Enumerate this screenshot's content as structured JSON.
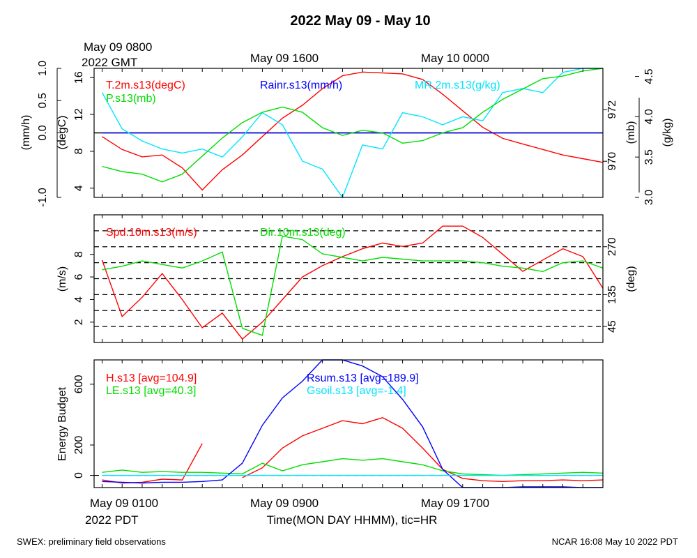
{
  "title": "2022 May 09 - May 10",
  "top_times": {
    "gmt_date": "May 09 0800",
    "gmt_label": "2022 GMT",
    "t2": "May 09 1600",
    "t3": "May 10 0000"
  },
  "bottom_times": {
    "t1": "May 09 0100",
    "pdt_label": "2022 PDT",
    "t2": "May 09 0900",
    "t3": "May 09 1700",
    "xlabel": "Time(MON DAY HHMM), tic=HR"
  },
  "footer": {
    "left": "SWEX: preliminary field observations",
    "right": "NCAR 16:08 May 10 2022 PDT"
  },
  "colors": {
    "red": "#ff0000",
    "green": "#00dd00",
    "blue": "#0000ff",
    "cyan": "#00e5ff",
    "black": "#000000"
  },
  "chart_data": [
    {
      "type": "line",
      "panel": "thermo",
      "x_hours_pdt": [
        1,
        2,
        3,
        4,
        5,
        6,
        7,
        8,
        9,
        10,
        11,
        12,
        13,
        14,
        15,
        16,
        17,
        18,
        19,
        20,
        21,
        22,
        23,
        24,
        25,
        26
      ],
      "axes": [
        {
          "label": "(mm/h)",
          "ticks": [
            "-1.0",
            "0.0",
            "0.5",
            "1.0"
          ],
          "ylim": [
            -1.0,
            1.0
          ]
        },
        {
          "label": "(degC)",
          "ticks": [
            "4",
            "8",
            "12",
            "16"
          ],
          "ylim": [
            3,
            17
          ]
        },
        {
          "label": "(mb)",
          "ticks": [
            "970",
            "972"
          ],
          "ylim": [
            968.6,
            973.6
          ]
        },
        {
          "label": "(g/kg)",
          "ticks": [
            "3.0",
            "3.5",
            "4.0",
            "4.5"
          ],
          "ylim": [
            3.0,
            4.6
          ]
        }
      ],
      "series": [
        {
          "name": "T.2m.s13(degC)",
          "color": "#ff0000",
          "axis": 1,
          "values": [
            9.6,
            8.2,
            7.4,
            7.6,
            6.2,
            3.8,
            6.0,
            7.6,
            9.6,
            11.6,
            13.0,
            14.8,
            16.2,
            16.6,
            16.5,
            16.4,
            15.8,
            14.2,
            12.4,
            10.6,
            9.4,
            8.8,
            8.2,
            7.6,
            7.2,
            6.8
          ]
        },
        {
          "name": "Rainr.s13(mm/h)",
          "color": "#0000ff",
          "axis": 0,
          "values": [
            0,
            0,
            0,
            0,
            0,
            0,
            0,
            0,
            0,
            0,
            0,
            0,
            0,
            0,
            0,
            0,
            0,
            0,
            0,
            0,
            0,
            0,
            0,
            0,
            0,
            0
          ]
        },
        {
          "name": "MR.2m.s13(g/kg)",
          "color": "#00e5ff",
          "axis": 3,
          "values": [
            4.3,
            3.85,
            3.7,
            3.6,
            3.55,
            3.6,
            3.5,
            3.75,
            4.05,
            3.9,
            3.45,
            3.35,
            3.0,
            3.65,
            3.6,
            4.05,
            4.0,
            3.9,
            4.0,
            3.95,
            4.3,
            4.35,
            4.3,
            4.55,
            4.6,
            4.6
          ]
        },
        {
          "name": "P.s13(mb)",
          "color": "#00dd00",
          "axis": 2,
          "values": [
            969.8,
            969.6,
            969.5,
            969.2,
            969.5,
            970.2,
            970.9,
            971.5,
            971.9,
            972.1,
            971.9,
            971.3,
            971.0,
            971.2,
            971.1,
            970.7,
            970.8,
            971.1,
            971.3,
            971.9,
            972.4,
            972.8,
            973.2,
            973.3,
            973.5,
            973.6
          ]
        }
      ]
    },
    {
      "type": "line",
      "panel": "wind",
      "x_hours_pdt": [
        1,
        2,
        3,
        4,
        5,
        6,
        7,
        8,
        9,
        10,
        11,
        12,
        13,
        14,
        15,
        16,
        17,
        18,
        19,
        20,
        21,
        22,
        23,
        24,
        25,
        26
      ],
      "axes": [
        {
          "label": "(m/s)",
          "ticks": [
            "2",
            "4",
            "6",
            "8"
          ],
          "ylim": [
            0.2,
            11.5
          ]
        },
        {
          "label": "(deg)",
          "ticks": [
            "45",
            "135",
            "270"
          ],
          "ylim": [
            0,
            360
          ]
        }
      ],
      "reference_lines_deg": [
        45,
        90,
        135,
        180,
        225,
        270,
        315
      ],
      "series": [
        {
          "name": "Spd.10m.s13(m/s)",
          "color": "#ff0000",
          "axis": 0,
          "values": [
            7.5,
            2.5,
            4.2,
            6.3,
            4.0,
            1.5,
            2.8,
            0.5,
            2.0,
            4.0,
            6.0,
            7.0,
            7.8,
            8.5,
            9.0,
            8.7,
            9.0,
            10.5,
            10.5,
            9.5,
            8.0,
            6.5,
            7.5,
            8.5,
            7.8,
            5.0
          ]
        },
        {
          "name": "Dir.10m.s13(deg)",
          "color": "#00dd00",
          "axis": 1,
          "values": [
            205,
            215,
            230,
            220,
            210,
            230,
            255,
            40,
            20,
            300,
            290,
            250,
            240,
            230,
            240,
            235,
            230,
            230,
            230,
            225,
            215,
            210,
            200,
            225,
            230,
            210
          ]
        }
      ]
    },
    {
      "type": "line",
      "panel": "energy",
      "x_hours_pdt": [
        1,
        2,
        3,
        4,
        5,
        6,
        7,
        8,
        9,
        10,
        11,
        12,
        13,
        14,
        15,
        16,
        17,
        18,
        19,
        20,
        21,
        22,
        23,
        24,
        25,
        26
      ],
      "axes": [
        {
          "label": "Energy Budget",
          "ticks": [
            "0",
            "200",
            "600"
          ],
          "ylim": [
            -80,
            760
          ]
        }
      ],
      "zero_line": 0,
      "series": [
        {
          "name": "H.s13 [avg=104.9]",
          "color": "#ff0000",
          "values": [
            -30,
            -50,
            -45,
            -25,
            -30,
            210,
            null,
            -15,
            50,
            180,
            260,
            310,
            360,
            340,
            380,
            310,
            180,
            40,
            -20,
            -35,
            -40,
            -35,
            -35,
            -30,
            -35,
            -30
          ]
        },
        {
          "name": "LE.s13 [avg=40.3]",
          "color": "#00dd00",
          "values": [
            20,
            35,
            20,
            25,
            20,
            20,
            15,
            10,
            80,
            30,
            70,
            90,
            110,
            100,
            110,
            90,
            70,
            30,
            10,
            5,
            0,
            5,
            10,
            15,
            20,
            15
          ]
        },
        {
          "name": "Rsum.s13 [avg=189.9]",
          "color": "#0000ff",
          "values": [
            -40,
            -45,
            -50,
            -45,
            -45,
            -40,
            -30,
            80,
            330,
            510,
            620,
            760,
            760,
            720,
            650,
            500,
            320,
            40,
            -80,
            -80,
            -80,
            -75,
            -75,
            -75,
            -80,
            -80
          ]
        },
        {
          "name": "Gsoil.s13 [avg=-1.4]",
          "color": "#00e5ff",
          "values": [
            0,
            0,
            0,
            0,
            0,
            0,
            0,
            0,
            0,
            0,
            0,
            0,
            0,
            0,
            0,
            0,
            0,
            0,
            0,
            0,
            0,
            0,
            0,
            0,
            0,
            0
          ]
        }
      ]
    }
  ]
}
